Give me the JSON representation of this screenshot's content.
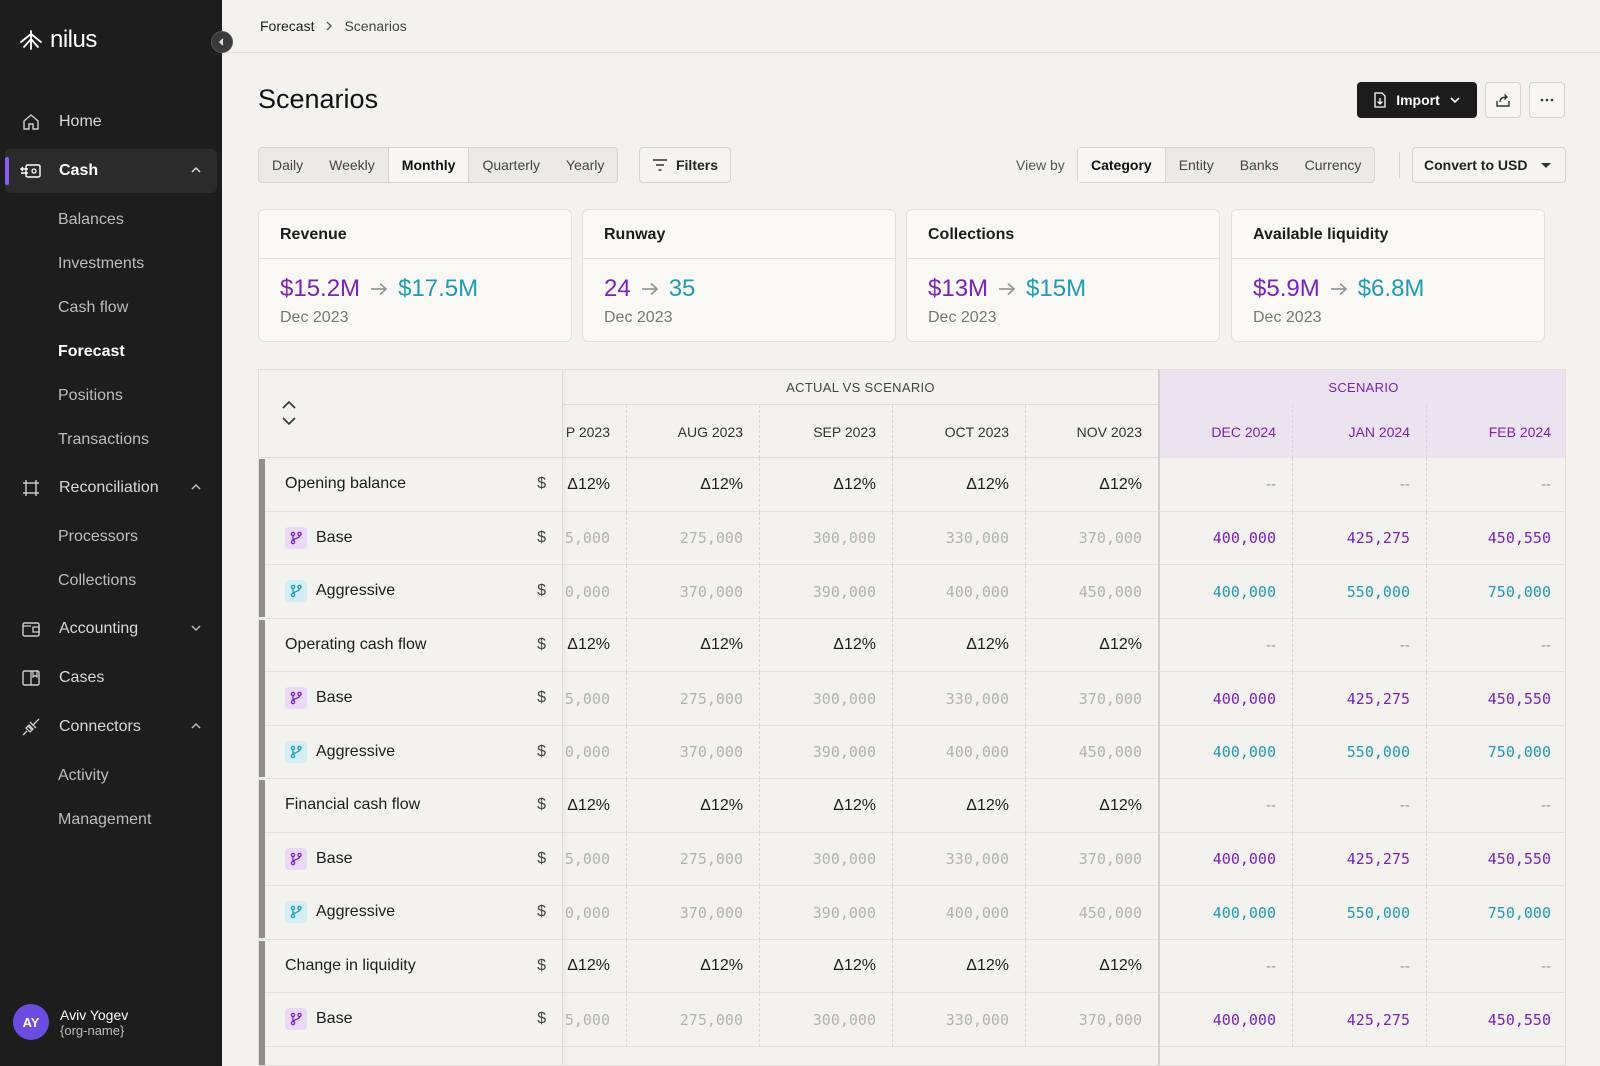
{
  "app": {
    "name": "nilus"
  },
  "sidebar": {
    "items": [
      {
        "label": "Home",
        "icon": "home-icon"
      },
      {
        "label": "Cash",
        "icon": "cash-icon",
        "active": true,
        "expanded": true,
        "children": [
          "Balances",
          "Investments",
          "Cash flow",
          "Forecast",
          "Positions",
          "Transactions"
        ],
        "active_child": "Forecast"
      },
      {
        "label": "Reconciliation",
        "icon": "reconciliation-icon",
        "expanded": true,
        "children": [
          "Processors",
          "Collections"
        ]
      },
      {
        "label": "Accounting",
        "icon": "accounting-icon",
        "expanded": false
      },
      {
        "label": "Cases",
        "icon": "cases-icon"
      },
      {
        "label": "Connectors",
        "icon": "connectors-icon",
        "expanded": true,
        "children": [
          "Activity",
          "Management"
        ]
      }
    ],
    "user": {
      "initials": "AY",
      "name": "Aviv Yogev",
      "org": "{org-name}"
    }
  },
  "breadcrumb": [
    "Forecast",
    "Scenarios"
  ],
  "page": {
    "title": "Scenarios",
    "import_label": "Import",
    "period_options": [
      "Daily",
      "Weekly",
      "Monthly",
      "Quarterly",
      "Yearly"
    ],
    "period_selected": "Monthly",
    "filters_label": "Filters",
    "view_by_label": "View by",
    "view_by_options": [
      "Category",
      "Entity",
      "Banks",
      "Currency"
    ],
    "view_by_selected": "Category",
    "convert_label": "Convert to USD"
  },
  "kpis": [
    {
      "title": "Revenue",
      "from": "$15.2M",
      "to": "$17.5M",
      "date": "Dec 2023"
    },
    {
      "title": "Runway",
      "from": "24",
      "to": "35",
      "date": "Dec 2023"
    },
    {
      "title": "Collections",
      "from": "$13M",
      "to": "$15M",
      "date": "Dec 2023"
    },
    {
      "title": "Available liquidity",
      "from": "$5.9M",
      "to": "$6.8M",
      "date": "Dec 2023"
    }
  ],
  "colors": {
    "scenario_purple": "#7b22b8",
    "aggressive_cyan": "#1f9bb6",
    "accent": "#8b5cf6"
  },
  "table": {
    "actual_header": "ACTUAL VS SCENARIO",
    "scenario_header": "SCENARIO",
    "actual_months": [
      "P 2023",
      "AUG 2023",
      "SEP 2023",
      "OCT 2023",
      "NOV 2023"
    ],
    "scenario_months": [
      "DEC 2024",
      "JAN 2024",
      "FEB 2024"
    ],
    "rows": [
      {
        "label": "Opening balance",
        "type": "group",
        "currency": "$",
        "actual": [
          "Δ12%",
          "Δ12%",
          "Δ12%",
          "Δ12%",
          "Δ12%"
        ],
        "scenario": [
          "--",
          "--",
          "--"
        ]
      },
      {
        "label": "Base",
        "type": "base",
        "currency": "$",
        "actual": [
          "5,000",
          "275,000",
          "300,000",
          "330,000",
          "370,000"
        ],
        "scenario": [
          "400,000",
          "425,275",
          "450,550"
        ]
      },
      {
        "label": "Aggressive",
        "type": "aggressive",
        "currency": "$",
        "actual": [
          "0,000",
          "370,000",
          "390,000",
          "400,000",
          "450,000"
        ],
        "scenario": [
          "400,000",
          "550,000",
          "750,000"
        ]
      },
      {
        "label": "Operating cash flow",
        "type": "group",
        "currency": "$",
        "actual": [
          "Δ12%",
          "Δ12%",
          "Δ12%",
          "Δ12%",
          "Δ12%"
        ],
        "scenario": [
          "--",
          "--",
          "--"
        ]
      },
      {
        "label": "Base",
        "type": "base",
        "currency": "$",
        "actual": [
          "5,000",
          "275,000",
          "300,000",
          "330,000",
          "370,000"
        ],
        "scenario": [
          "400,000",
          "425,275",
          "450,550"
        ]
      },
      {
        "label": "Aggressive",
        "type": "aggressive",
        "currency": "$",
        "actual": [
          "0,000",
          "370,000",
          "390,000",
          "400,000",
          "450,000"
        ],
        "scenario": [
          "400,000",
          "550,000",
          "750,000"
        ]
      },
      {
        "label": "Financial cash flow",
        "type": "group",
        "currency": "$",
        "actual": [
          "Δ12%",
          "Δ12%",
          "Δ12%",
          "Δ12%",
          "Δ12%"
        ],
        "scenario": [
          "--",
          "--",
          "--"
        ]
      },
      {
        "label": "Base",
        "type": "base",
        "currency": "$",
        "actual": [
          "5,000",
          "275,000",
          "300,000",
          "330,000",
          "370,000"
        ],
        "scenario": [
          "400,000",
          "425,275",
          "450,550"
        ]
      },
      {
        "label": "Aggressive",
        "type": "aggressive",
        "currency": "$",
        "actual": [
          "0,000",
          "370,000",
          "390,000",
          "400,000",
          "450,000"
        ],
        "scenario": [
          "400,000",
          "550,000",
          "750,000"
        ]
      },
      {
        "label": "Change in liquidity",
        "type": "group",
        "currency": "$",
        "actual": [
          "Δ12%",
          "Δ12%",
          "Δ12%",
          "Δ12%",
          "Δ12%"
        ],
        "scenario": [
          "--",
          "--",
          "--"
        ]
      },
      {
        "label": "Base",
        "type": "base",
        "currency": "$",
        "actual": [
          "5,000",
          "275,000",
          "300,000",
          "330,000",
          "370,000"
        ],
        "scenario": [
          "400,000",
          "425,275",
          "450,550"
        ]
      }
    ]
  }
}
